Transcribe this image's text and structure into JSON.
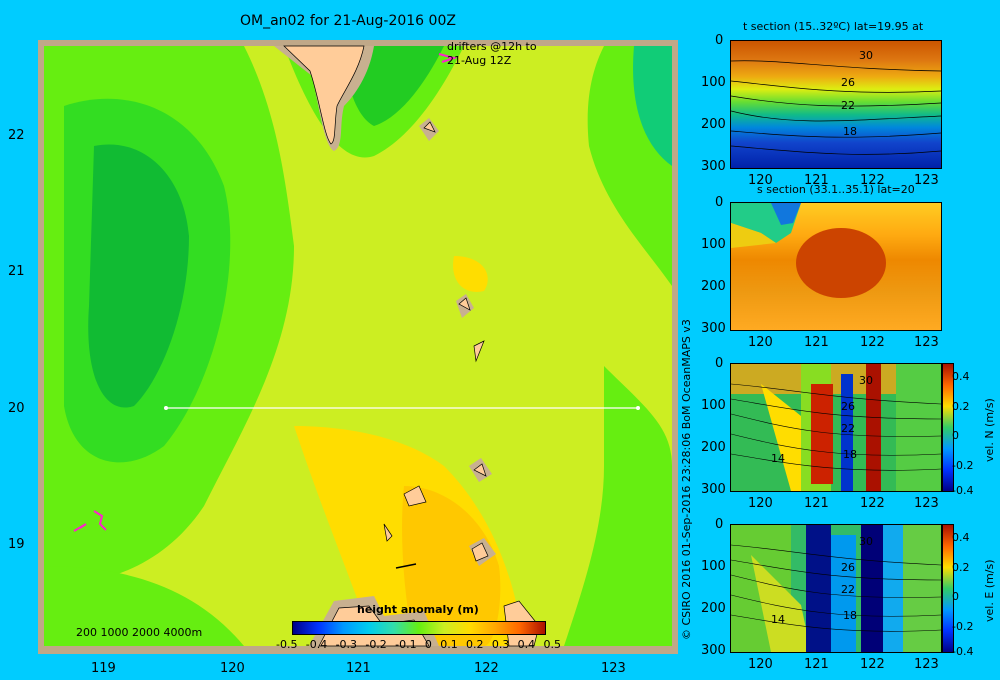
{
  "main": {
    "title": "OM_an02 for 21-Aug-2016 00Z",
    "drifter_note_line1": "drifters @12h to",
    "drifter_note_line2": "21-Aug 12Z",
    "x_ticks": [
      "119",
      "120",
      "121",
      "122",
      "123"
    ],
    "y_ticks": [
      "22",
      "21",
      "20",
      "19"
    ],
    "depth_legend": "200  1000  2000  4000m",
    "colorbar": {
      "title": "height anomaly  (m)",
      "labels": [
        "-0.5",
        "-0.4",
        "-0.3",
        "-0.2",
        "-0.1",
        "0",
        "0.1",
        "0.2",
        "0.3",
        "0.4",
        "0.5"
      ]
    }
  },
  "credit": "© CSIRO 2016   01-Sep-2016 23:28:06 BoM OceanMAPS v3",
  "panels": {
    "t_section": {
      "title": "t section (15..32ºC) lat=19.95 at",
      "contour_labels": [
        "30",
        "26",
        "22",
        "18"
      ],
      "x_ticks": [
        "120",
        "121",
        "122",
        "123"
      ],
      "y_ticks": [
        "0",
        "100",
        "200",
        "300"
      ]
    },
    "s_section": {
      "title": "s section (33.1..35.1) lat=20",
      "x_ticks": [
        "120",
        "121",
        "122",
        "123"
      ],
      "y_ticks": [
        "0",
        "100",
        "200",
        "300"
      ]
    },
    "vn_section": {
      "contour_labels": [
        "30",
        "26",
        "22",
        "18",
        "14"
      ],
      "colorbar_title": "vel. N (m/s)",
      "colorbar_labels": [
        "0.4",
        "0.2",
        "0",
        "-0.2",
        "-0.4"
      ],
      "x_ticks": [
        "120",
        "121",
        "122",
        "123"
      ],
      "y_ticks": [
        "0",
        "100",
        "200",
        "300"
      ]
    },
    "ve_section": {
      "contour_labels": [
        "30",
        "26",
        "22",
        "18",
        "14"
      ],
      "colorbar_title": "vel. E (m/s)",
      "colorbar_labels": [
        "0.4",
        "0.2",
        "0",
        "-0.2",
        "-0.4"
      ],
      "x_ticks": [
        "120",
        "121",
        "122",
        "123"
      ],
      "y_ticks": [
        "0",
        "100",
        "200",
        "300"
      ]
    }
  },
  "colors": {
    "background": "#00ccff",
    "land": "#ffcc99",
    "shelf": "#c8b090",
    "sea_base": "#ccee22"
  }
}
